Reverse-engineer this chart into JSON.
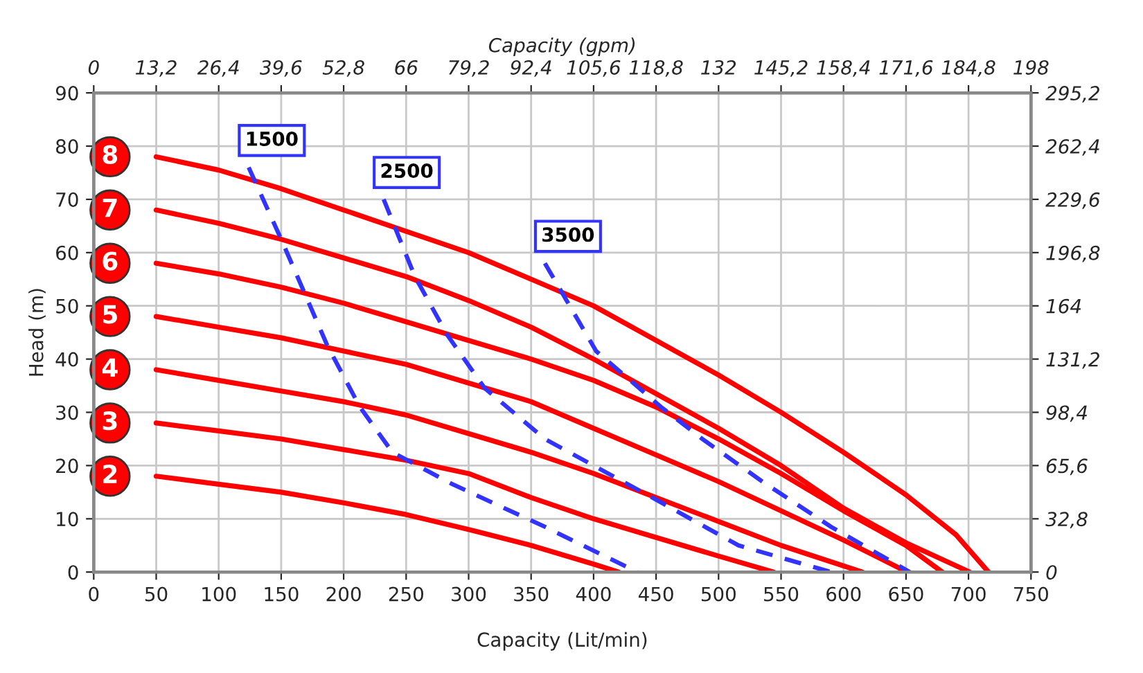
{
  "chart_data": {
    "type": "line",
    "xlabel": "Capacity (Lit/min)",
    "ylabel": "Head (m)",
    "x2label": "Capacity (gpm)",
    "xlim": [
      0,
      750
    ],
    "xticks": [
      0,
      50,
      100,
      150,
      200,
      250,
      300,
      350,
      400,
      450,
      500,
      550,
      600,
      650,
      700,
      750
    ],
    "ylim": [
      0,
      90
    ],
    "yticks": [
      0,
      10,
      20,
      30,
      40,
      50,
      60,
      70,
      80,
      90
    ],
    "x2lim": [
      0,
      198
    ],
    "x2ticks": [
      0,
      {
        "value": 13.2,
        "label": "13,2"
      },
      {
        "value": 26.4,
        "label": "26,4"
      },
      {
        "value": 39.6,
        "label": "39,6"
      },
      {
        "value": 52.8,
        "label": "52,8"
      },
      66,
      {
        "value": 79.2,
        "label": "79,2"
      },
      {
        "value": 92.4,
        "label": "92,4"
      },
      {
        "value": 105.6,
        "label": "105,6"
      },
      {
        "value": 118.8,
        "label": "118,8"
      },
      132,
      {
        "value": 145.2,
        "label": "145,2"
      },
      {
        "value": 158.4,
        "label": "158,4"
      },
      {
        "value": 171.6,
        "label": "171,6"
      },
      {
        "value": 184.8,
        "label": "184,8"
      },
      198
    ],
    "y2lim": [
      0,
      295.2
    ],
    "y2ticks": [
      0,
      {
        "value": 32.8,
        "label": "32,8"
      },
      {
        "value": 65.6,
        "label": "65,6"
      },
      {
        "value": 98.4,
        "label": "98,4"
      },
      {
        "value": 131.2,
        "label": "131,2"
      },
      164,
      {
        "value": 196.8,
        "label": "196,8"
      },
      {
        "value": 229.6,
        "label": "229,6"
      },
      {
        "value": 262.4,
        "label": "262,4"
      },
      {
        "value": 295.2,
        "label": "295,2"
      }
    ],
    "grid": true,
    "legend": "left",
    "series": [
      {
        "name": "8",
        "color": "#ff0000",
        "line_style": "solid",
        "x": [
          50,
          100,
          150,
          200,
          250,
          300,
          350,
          400,
          450,
          500,
          550,
          600,
          650,
          690,
          716
        ],
        "values": [
          78,
          75.5,
          72,
          68,
          64,
          60,
          55,
          50,
          43.5,
          37,
          30,
          22.5,
          14.5,
          7,
          0
        ]
      },
      {
        "name": "7",
        "color": "#ff0000",
        "line_style": "solid",
        "x": [
          50,
          100,
          150,
          200,
          250,
          300,
          350,
          400,
          450,
          500,
          550,
          600,
          650,
          701
        ],
        "values": [
          68,
          65.5,
          62.5,
          59,
          55.5,
          51,
          46,
          40,
          33.5,
          27,
          20,
          12,
          5.5,
          0
        ]
      },
      {
        "name": "6",
        "color": "#ff0000",
        "line_style": "solid",
        "x": [
          50,
          100,
          150,
          200,
          250,
          300,
          350,
          400,
          450,
          500,
          550,
          600,
          650,
          679
        ],
        "values": [
          58,
          56,
          53.5,
          50.5,
          47,
          43.5,
          40,
          36,
          31,
          25,
          18.5,
          11.5,
          5,
          0
        ]
      },
      {
        "name": "5",
        "color": "#ff0000",
        "line_style": "solid",
        "x": [
          50,
          100,
          150,
          200,
          250,
          300,
          350,
          400,
          450,
          500,
          550,
          600,
          651
        ],
        "values": [
          48,
          46,
          44,
          41.5,
          39,
          35.5,
          32,
          27,
          22,
          17,
          11.5,
          6,
          0
        ]
      },
      {
        "name": "4",
        "color": "#ff0000",
        "line_style": "solid",
        "x": [
          50,
          100,
          150,
          200,
          250,
          300,
          350,
          400,
          450,
          500,
          550,
          615
        ],
        "values": [
          38,
          36,
          34,
          32,
          29.5,
          26,
          22.5,
          18.5,
          14,
          9.5,
          5,
          0
        ]
      },
      {
        "name": "3",
        "color": "#ff0000",
        "line_style": "solid",
        "x": [
          50,
          100,
          150,
          200,
          250,
          300,
          350,
          400,
          450,
          500,
          544
        ],
        "values": [
          28,
          26.5,
          25,
          23,
          21,
          18.5,
          14,
          10,
          6.5,
          3,
          0
        ]
      },
      {
        "name": "2",
        "color": "#ff0000",
        "line_style": "solid",
        "x": [
          50,
          100,
          150,
          200,
          250,
          300,
          350,
          400,
          420
        ],
        "values": [
          18,
          16.5,
          15,
          13,
          10.8,
          8,
          5,
          1.5,
          0
        ]
      },
      {
        "name": "1500",
        "color": "#3333ff",
        "line_style": "dashed",
        "x": [
          124,
          150,
          187,
          213,
          239,
          287,
          361,
          435
        ],
        "values": [
          76,
          62.5,
          42.5,
          31,
          22.5,
          16.5,
          8.5,
          0
        ]
      },
      {
        "name": "2500",
        "color": "#3333ff",
        "line_style": "dashed",
        "x": [
          232,
          257,
          283,
          313,
          361,
          443,
          516,
          590
        ],
        "values": [
          70,
          55.5,
          44.5,
          34.5,
          25,
          14.5,
          5,
          0
        ]
      },
      {
        "name": "3500",
        "color": "#3333ff",
        "line_style": "dashed",
        "x": [
          361,
          402,
          454,
          487,
          535,
          590,
          653
        ],
        "values": [
          58,
          41.5,
          31,
          25,
          17,
          8.5,
          0
        ]
      }
    ]
  }
}
